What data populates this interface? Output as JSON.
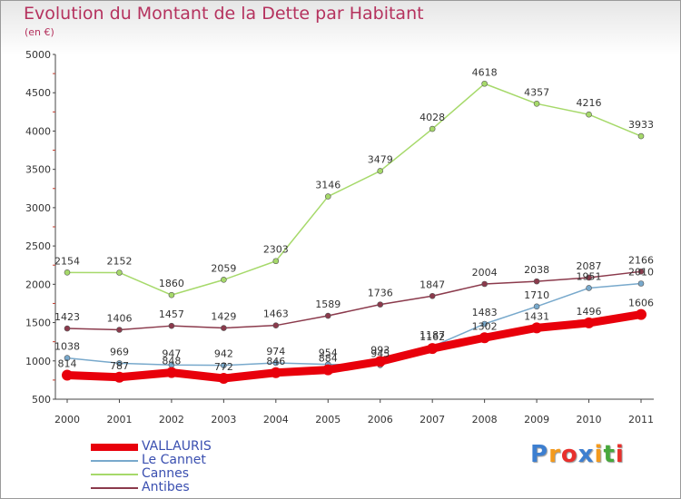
{
  "title": "Evolution du Montant de la Dette par Habitant",
  "subtitle": "(en €)",
  "logo": {
    "letters": [
      "P",
      "r",
      "o",
      "x",
      "i",
      "t",
      "i"
    ],
    "colors": [
      "#3d7fd0",
      "#f39a1d",
      "#e8302c",
      "#3d7fd0",
      "#f39a1d",
      "#47a83c",
      "#e8302c"
    ]
  },
  "chart_data": {
    "type": "line",
    "title": "Evolution du Montant de la Dette par Habitant",
    "subtitle": "(en €)",
    "x": [
      "2000",
      "2001",
      "2002",
      "2003",
      "2004",
      "2005",
      "2006",
      "2007",
      "2008",
      "2009",
      "2010",
      "2011"
    ],
    "ylim": [
      500,
      5000
    ],
    "yticks": [
      500,
      1000,
      1500,
      2000,
      2500,
      3000,
      3500,
      4000,
      4500,
      5000
    ],
    "grid": false,
    "legend_position": "bottom-left",
    "series": [
      {
        "name": "VALLAURIS",
        "color": "#e8000b",
        "values": [
          814,
          787,
          848,
          772,
          846,
          884,
          993,
          1162,
          1302,
          1431,
          1496,
          1606
        ]
      },
      {
        "name": "Le Cannet",
        "color": "#78a9cc",
        "values": [
          1038,
          969,
          947,
          942,
          974,
          954,
          945,
          1187,
          1483,
          1710,
          1951,
          2010
        ]
      },
      {
        "name": "Cannes",
        "color": "#a6d96a",
        "values": [
          2154,
          2152,
          1860,
          2059,
          2303,
          3146,
          3479,
          4028,
          4618,
          4357,
          4216,
          3933
        ]
      },
      {
        "name": "Antibes",
        "color": "#8b3a4c",
        "values": [
          1423,
          1406,
          1457,
          1429,
          1463,
          1589,
          1736,
          1847,
          2004,
          2038,
          2087,
          2166
        ]
      }
    ]
  }
}
